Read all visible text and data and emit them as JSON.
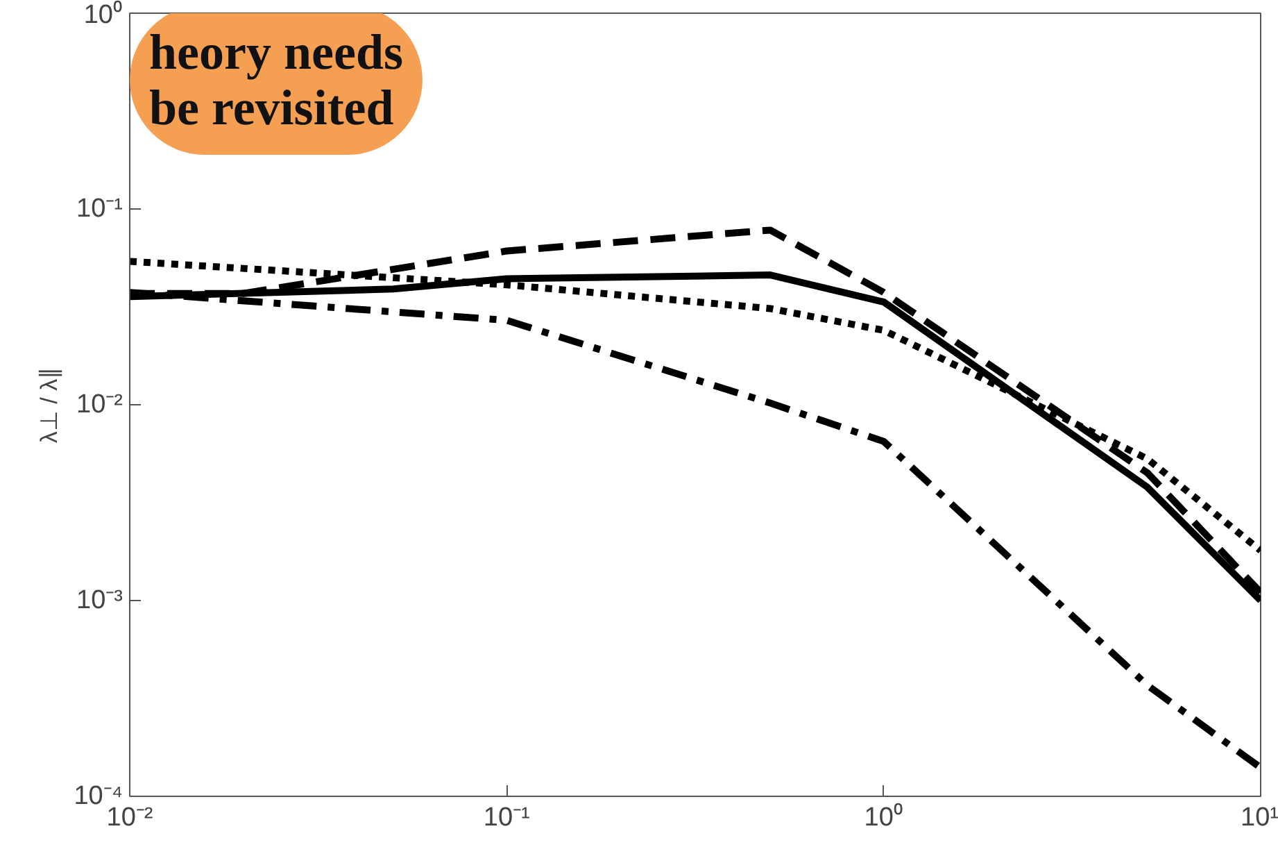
{
  "chart_data": {
    "type": "line",
    "ylabel": "λ⊥ / λ∥",
    "log": "xy",
    "xlim": [
      0.01,
      10
    ],
    "ylim": [
      0.0001,
      1
    ],
    "xticks": [
      {
        "value": 0.01,
        "label": "10⁻²"
      },
      {
        "value": 0.1,
        "label": "10⁻¹"
      },
      {
        "value": 1,
        "label": "10⁰"
      },
      {
        "value": 10,
        "label": "10¹"
      }
    ],
    "yticks": [
      {
        "value": 0.0001,
        "label": "10⁻⁴"
      },
      {
        "value": 0.001,
        "label": "10⁻³"
      },
      {
        "value": 0.01,
        "label": "10⁻²"
      },
      {
        "value": 0.1,
        "label": "10⁻¹"
      },
      {
        "value": 1,
        "label": "10⁰"
      }
    ],
    "annotations": [
      "heory needs\nbe revisited"
    ],
    "series": [
      {
        "color": "#000000",
        "line_style": "solid",
        "x": [
          0.01,
          0.05,
          0.1,
          0.5,
          1,
          5,
          10
        ],
        "values": [
          0.0357,
          0.039,
          0.044,
          0.046,
          0.0335,
          0.0038,
          0.001
        ]
      },
      {
        "color": "#000000",
        "line_style": "dashed",
        "x": [
          0.01,
          0.02,
          0.1,
          0.5,
          1,
          5,
          10
        ],
        "values": [
          0.037,
          0.037,
          0.061,
          0.078,
          0.0375,
          0.0045,
          0.0011
        ]
      },
      {
        "color": "#000000",
        "line_style": "dotted",
        "x": [
          0.01,
          0.1,
          0.5,
          1,
          5,
          10
        ],
        "values": [
          0.054,
          0.041,
          0.031,
          0.024,
          0.0053,
          0.0018
        ]
      },
      {
        "color": "#000000",
        "line_style": "dashdot",
        "x": [
          0.01,
          0.1,
          0.5,
          1,
          5,
          10
        ],
        "values": [
          0.0375,
          0.027,
          0.0102,
          0.0065,
          0.00037,
          0.00014
        ]
      }
    ]
  }
}
